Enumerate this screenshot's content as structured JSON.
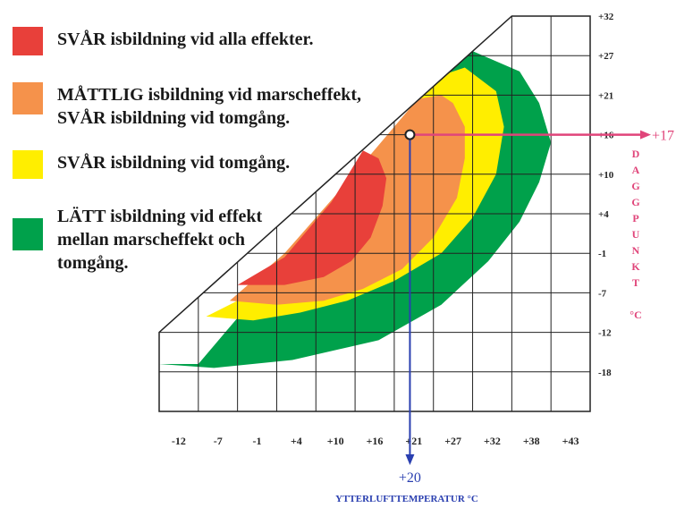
{
  "chart_data": {
    "type": "area",
    "title": "",
    "xlabel": "YTTERLUFTTEMPERATUR °C",
    "ylabel": "DAGGPUNKT",
    "ylabel_unit": "°C",
    "x_ticks": [
      "-12",
      "-7",
      "-1",
      "+4",
      "+10",
      "+16",
      "+21",
      "+27",
      "+32",
      "+38",
      "+43"
    ],
    "y_ticks": [
      "+32",
      "+27",
      "+21",
      "+16",
      "+10",
      "+4",
      "-1",
      "-7",
      "-12",
      "-18"
    ],
    "xlim": [
      -12,
      43
    ],
    "ylim": [
      -18,
      32
    ],
    "grid": true,
    "legend_position": "top-left",
    "series": [
      {
        "name": "LÄTT isbildning vid effekt mellan marscheffekt och tomgång.",
        "color": "#00a14b",
        "boundary": [
          [
            -12,
            -12
          ],
          [
            -5,
            -12.5
          ],
          [
            5,
            -11.5
          ],
          [
            16,
            -9
          ],
          [
            24,
            -4.5
          ],
          [
            30,
            1
          ],
          [
            34,
            6
          ],
          [
            36.5,
            11
          ],
          [
            38,
            16
          ],
          [
            36.5,
            21
          ],
          [
            34,
            25
          ],
          [
            27,
            28
          ],
          [
            21,
            21.5
          ],
          [
            10,
            8.5
          ],
          [
            -1,
            -5
          ],
          [
            -7,
            -12
          ],
          [
            -12,
            -12
          ]
        ]
      },
      {
        "name": "SVÅR isbildning vid tomgång.",
        "color": "#ffee00",
        "boundary": [
          [
            -6,
            -6
          ],
          [
            0,
            -6.5
          ],
          [
            6,
            -5.5
          ],
          [
            12,
            -4
          ],
          [
            18,
            -1.5
          ],
          [
            24,
            2
          ],
          [
            28,
            6.5
          ],
          [
            31,
            12
          ],
          [
            32,
            18
          ],
          [
            31,
            22.5
          ],
          [
            27,
            25.5
          ],
          [
            24,
            24.5
          ],
          [
            21,
            21.5
          ],
          [
            10,
            8.5
          ],
          [
            1,
            -2.5
          ],
          [
            -6,
            -6
          ]
        ]
      },
      {
        "name": "MÅTTLIG isbildning vid marscheffekt, SVÅR isbildning vid tomgång.",
        "color": "#f5924b",
        "boundary": [
          [
            -3,
            -4
          ],
          [
            3,
            -4.5
          ],
          [
            9,
            -4
          ],
          [
            14,
            -2.5
          ],
          [
            19,
            0
          ],
          [
            23,
            4
          ],
          [
            26,
            9
          ],
          [
            27,
            14
          ],
          [
            27,
            18
          ],
          [
            25.5,
            21
          ],
          [
            24,
            22
          ],
          [
            21,
            21.5
          ],
          [
            12,
            11
          ],
          [
            4,
            2
          ],
          [
            -3,
            -4
          ]
        ]
      },
      {
        "name": "SVÅR isbildning vid alla effekter.",
        "color": "#e8403a",
        "boundary": [
          [
            -2,
            -2
          ],
          [
            4,
            -2
          ],
          [
            9,
            -1
          ],
          [
            12.5,
            1
          ],
          [
            15,
            4
          ],
          [
            16.5,
            8
          ],
          [
            17,
            11.5
          ],
          [
            16,
            14
          ],
          [
            14,
            15
          ],
          [
            10,
            8.5
          ],
          [
            4,
            1.5
          ],
          [
            -2,
            -2
          ]
        ]
      }
    ],
    "annotations": [
      {
        "label": "+20",
        "x": 20,
        "axis": "x",
        "color": "#2a3fb0"
      },
      {
        "label": "+17",
        "y": 17,
        "axis": "y",
        "color": "#e0457a"
      }
    ]
  }
}
